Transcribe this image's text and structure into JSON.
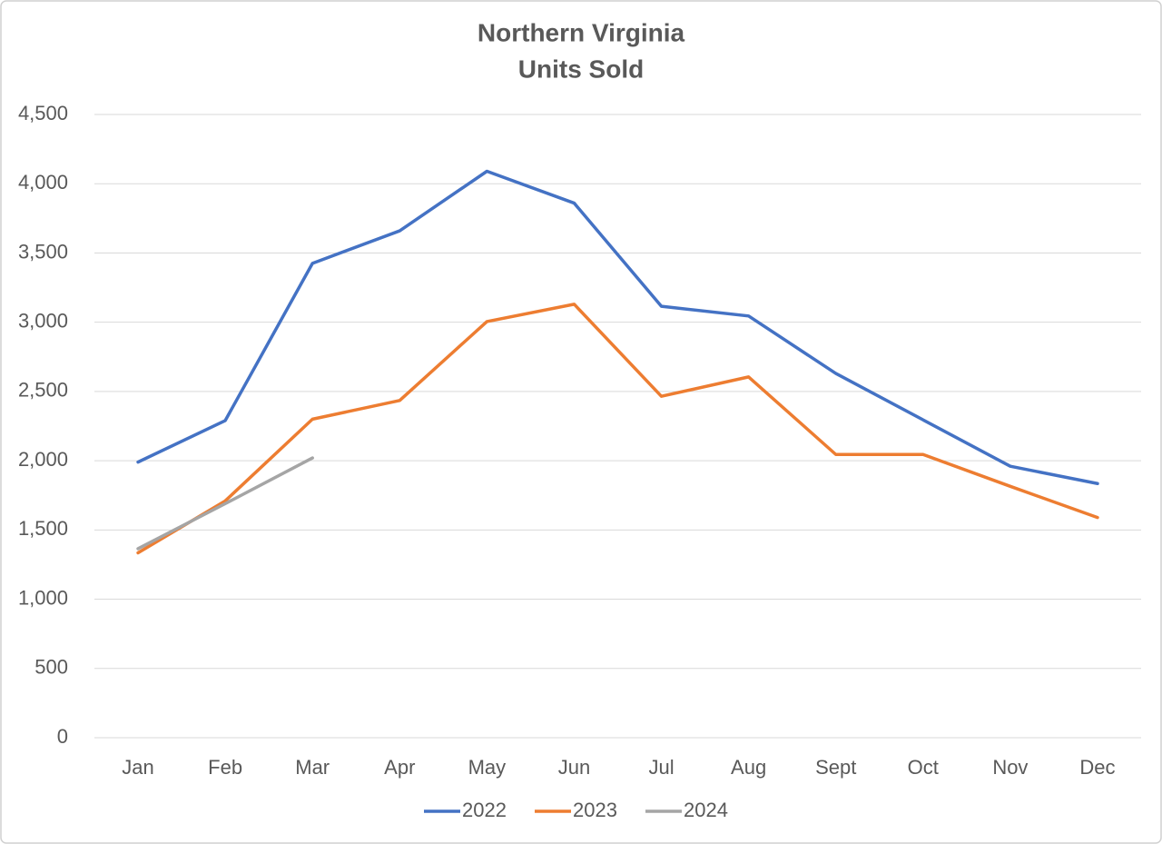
{
  "chart_data": {
    "type": "line",
    "title": "Northern Virginia",
    "subtitle": "Units Sold",
    "categories": [
      "Jan",
      "Feb",
      "Mar",
      "Apr",
      "May",
      "Jun",
      "Jul",
      "Aug",
      "Sept",
      "Oct",
      "Nov",
      "Dec"
    ],
    "series": [
      {
        "name": "2022",
        "color": "#4472c4",
        "values": [
          1990,
          2290,
          3425,
          3660,
          4090,
          3860,
          3115,
          3045,
          2630,
          2295,
          1960,
          1835
        ]
      },
      {
        "name": "2023",
        "color": "#ed7d31",
        "values": [
          1335,
          1710,
          2300,
          2435,
          3005,
          3130,
          2465,
          2605,
          2045,
          2045,
          1815,
          1590
        ]
      },
      {
        "name": "2024",
        "color": "#a5a5a5",
        "values": [
          1365,
          1690,
          2020,
          null,
          null,
          null,
          null,
          null,
          null,
          null,
          null,
          null
        ]
      }
    ],
    "ylim": [
      0,
      4500
    ],
    "yticks": [
      0,
      500,
      {
        "value": 1000,
        "label": "1,000"
      },
      {
        "value": 1500,
        "label": "1,500"
      },
      {
        "value": 2000,
        "label": "2,000"
      },
      {
        "value": 2500,
        "label": "2,500"
      },
      {
        "value": 3000,
        "label": "3,000"
      },
      {
        "value": 3500,
        "label": "3,500"
      },
      {
        "value": 4000,
        "label": "4,000"
      },
      {
        "value": 4500,
        "label": "4,500"
      }
    ],
    "grid": true,
    "legend": "bottom"
  }
}
